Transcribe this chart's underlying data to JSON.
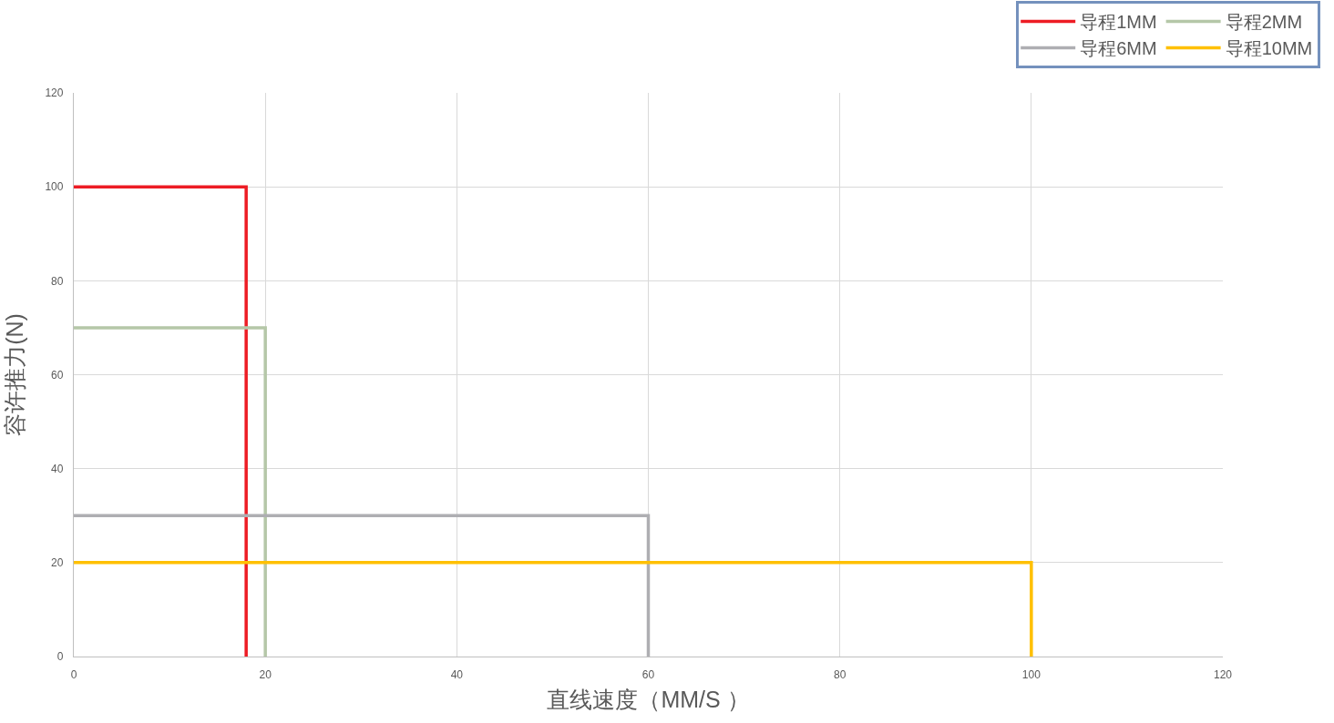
{
  "chart_data": {
    "type": "line",
    "xlabel": "直线速度（MM/S ）",
    "ylabel": "容许推力(N)",
    "xlim": [
      0,
      120
    ],
    "xticks": [
      0,
      20,
      40,
      60,
      80,
      100,
      120
    ],
    "ylim": [
      0,
      120
    ],
    "yticks": [
      0,
      20,
      40,
      60,
      80,
      100,
      120
    ],
    "grid": true,
    "legend": "top right",
    "marker": "none",
    "line_style": "solid",
    "series": [
      {
        "name": "导程1MM",
        "color": "#ed1c24",
        "x": [
          0,
          18,
          18
        ],
        "values": [
          100,
          100,
          0
        ]
      },
      {
        "name": "导程2MM",
        "color": "#b5c7a8",
        "x": [
          0,
          20,
          20
        ],
        "values": [
          70,
          70,
          0
        ]
      },
      {
        "name": "导程6MM",
        "color": "#aeaeb2",
        "x": [
          0,
          60,
          60
        ],
        "values": [
          30,
          30,
          0
        ]
      },
      {
        "name": "导程10MM",
        "color": "#ffc000",
        "x": [
          0,
          100,
          100
        ],
        "values": [
          20,
          20,
          0
        ]
      }
    ]
  }
}
